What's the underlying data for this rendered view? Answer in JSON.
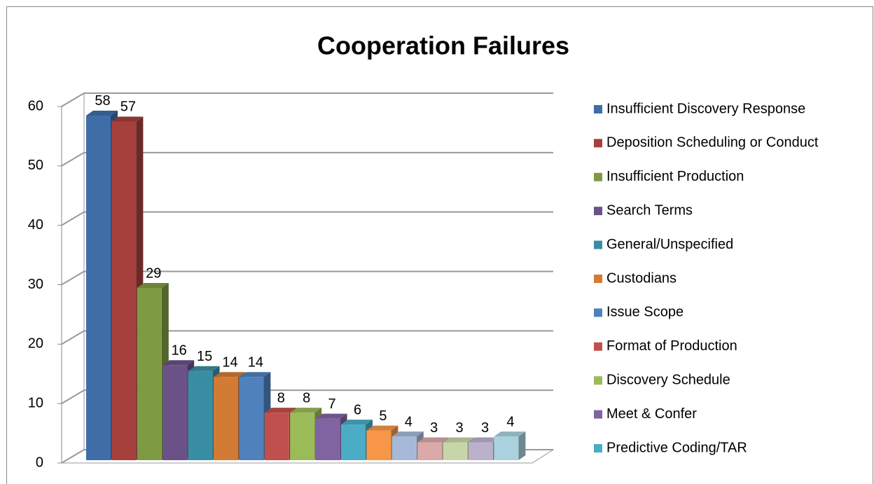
{
  "chart_data": {
    "type": "bar3d",
    "title": "Cooperation Failures",
    "categories": [
      "Insufficient Discovery Response",
      "Deposition Scheduling or Conduct",
      "Insufficient Production",
      "Search Terms",
      "General/Unspecified",
      "Custodians",
      "Issue Scope",
      "Format of Production",
      "Discovery Schedule",
      "Meet & Confer",
      "Predictive Coding/TAR",
      null,
      null,
      null,
      null,
      null,
      null
    ],
    "values": [
      58,
      57,
      29,
      16,
      15,
      14,
      14,
      8,
      8,
      7,
      6,
      5,
      4,
      3,
      3,
      3,
      4
    ],
    "colors": [
      "#3f6da8",
      "#a5403d",
      "#7e9b43",
      "#6a5186",
      "#3a8ea4",
      "#d27b35",
      "#4f81bd",
      "#c0504d",
      "#9bbb59",
      "#8064a2",
      "#4bacc6",
      "#f79646",
      "#a7b9d8",
      "#dba9a8",
      "#c7d6a9",
      "#bcb1cb",
      "#a9d1de"
    ],
    "ylim": [
      0,
      60
    ],
    "yticks": [
      0,
      10,
      20,
      30,
      40,
      50,
      60
    ],
    "grid": true,
    "legend": "right"
  }
}
